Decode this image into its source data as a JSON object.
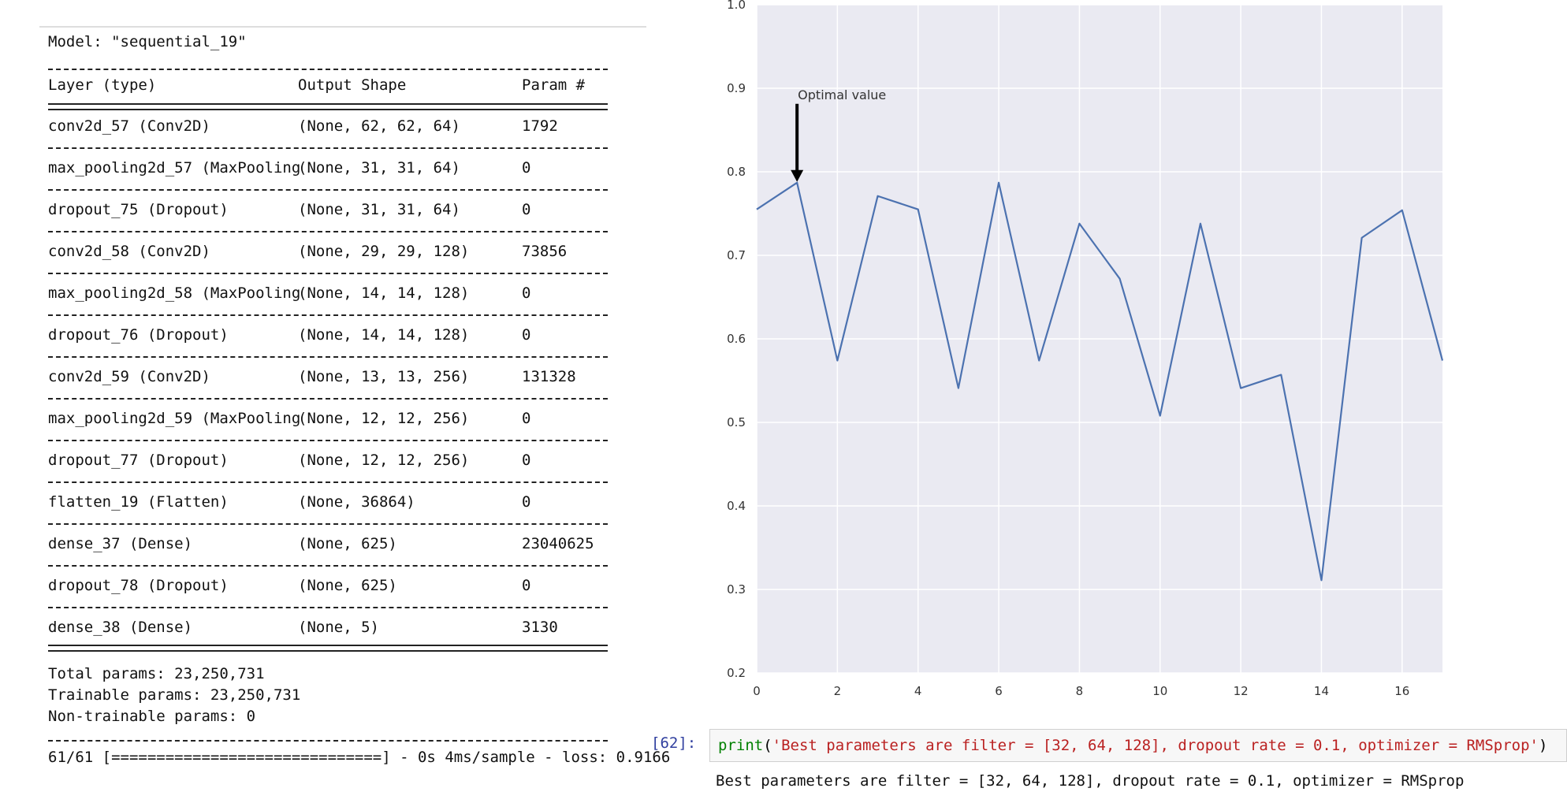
{
  "model_summary": {
    "title": "Model: \"sequential_19\"",
    "headers": {
      "layer": "Layer (type)",
      "shape": "Output Shape",
      "params": "Param #"
    },
    "rows": [
      {
        "layer": "conv2d_57 (Conv2D)",
        "shape": "(None, 62, 62, 64)",
        "params": "1792"
      },
      {
        "layer": "max_pooling2d_57 (MaxPooling",
        "shape": "(None, 31, 31, 64)",
        "params": "0"
      },
      {
        "layer": "dropout_75 (Dropout)",
        "shape": "(None, 31, 31, 64)",
        "params": "0"
      },
      {
        "layer": "conv2d_58 (Conv2D)",
        "shape": "(None, 29, 29, 128)",
        "params": "73856"
      },
      {
        "layer": "max_pooling2d_58 (MaxPooling",
        "shape": "(None, 14, 14, 128)",
        "params": "0"
      },
      {
        "layer": "dropout_76 (Dropout)",
        "shape": "(None, 14, 14, 128)",
        "params": "0"
      },
      {
        "layer": "conv2d_59 (Conv2D)",
        "shape": "(None, 13, 13, 256)",
        "params": "131328"
      },
      {
        "layer": "max_pooling2d_59 (MaxPooling",
        "shape": "(None, 12, 12, 256)",
        "params": "0"
      },
      {
        "layer": "dropout_77 (Dropout)",
        "shape": "(None, 12, 12, 256)",
        "params": "0"
      },
      {
        "layer": "flatten_19 (Flatten)",
        "shape": "(None, 36864)",
        "params": "0"
      },
      {
        "layer": "dense_37 (Dense)",
        "shape": "(None, 625)",
        "params": "23040625"
      },
      {
        "layer": "dropout_78 (Dropout)",
        "shape": "(None, 625)",
        "params": "0"
      },
      {
        "layer": "dense_38 (Dense)",
        "shape": "(None, 5)",
        "params": "3130"
      }
    ],
    "total_params": "Total params: 23,250,731",
    "trainable_params": "Trainable params: 23,250,731",
    "non_trainable_params": "Non-trainable params: 0",
    "eval_line": "61/61 [==============================] - 0s 4ms/sample - loss: 0.9166"
  },
  "chart_data": {
    "type": "line",
    "x": [
      0,
      1,
      2,
      3,
      4,
      5,
      6,
      7,
      8,
      9,
      10,
      11,
      12,
      13,
      14,
      15,
      16,
      17
    ],
    "series": [
      {
        "values": [
          0.755,
          0.787,
          0.574,
          0.771,
          0.755,
          0.541,
          0.787,
          0.574,
          0.738,
          0.672,
          0.508,
          0.738,
          0.541,
          0.557,
          0.311,
          0.721,
          0.754,
          0.574
        ]
      }
    ],
    "xlim": [
      0,
      17
    ],
    "ylim": [
      0.2,
      1.0
    ],
    "x_ticks": [
      "0",
      "2",
      "4",
      "6",
      "8",
      "10",
      "12",
      "14",
      "16"
    ],
    "y_ticks": [
      "0.2",
      "0.3",
      "0.4",
      "0.5",
      "0.6",
      "0.7",
      "0.8",
      "0.9",
      "1.0"
    ],
    "grid": true,
    "annotation": {
      "text": "Optimal value",
      "x": 1,
      "y": 0.787
    },
    "colors": {
      "line": "#4c72b0",
      "background": "#eaeaf2",
      "grid": "#ffffff"
    }
  },
  "code_cell": {
    "prompt": "[62]:",
    "code_func": "print",
    "code_open": "(",
    "code_string": "'Best parameters are filter = [32, 64, 128], dropout rate = 0.1, optimizer = RMSprop'",
    "code_close": ")",
    "output": "Best parameters are filter = [32, 64, 128], dropout rate = 0.1, optimizer = RMSprop"
  }
}
